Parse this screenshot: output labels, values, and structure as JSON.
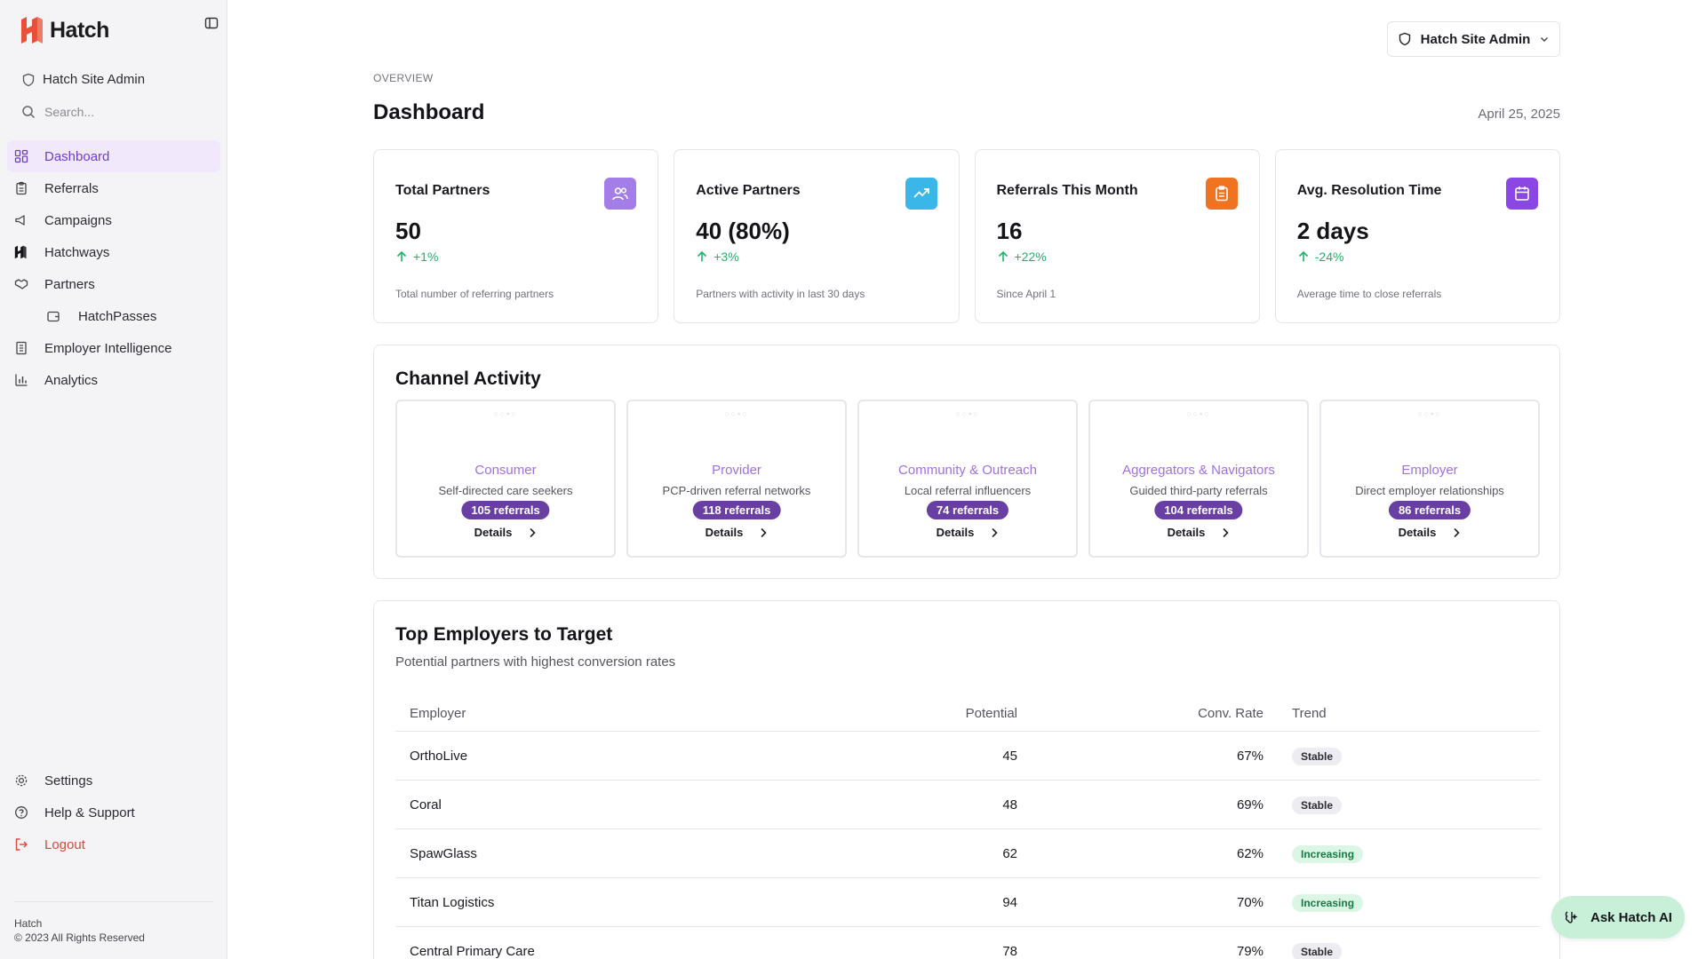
{
  "brand": {
    "name": "Hatch",
    "accent": "#e8503a"
  },
  "sidebar": {
    "org_name": "Hatch Site Admin",
    "search_placeholder": "Search...",
    "items": [
      {
        "label": "Dashboard",
        "icon": "dashboard-icon",
        "active": true
      },
      {
        "label": "Referrals",
        "icon": "clipboard-icon"
      },
      {
        "label": "Campaigns",
        "icon": "megaphone-icon"
      },
      {
        "label": "Hatchways",
        "icon": "hatch-logo-icon"
      },
      {
        "label": "Partners",
        "icon": "handshake-icon"
      },
      {
        "label": "HatchPasses",
        "icon": "wallet-icon"
      },
      {
        "label": "Employer Intelligence",
        "icon": "building-icon"
      },
      {
        "label": "Analytics",
        "icon": "bar-chart-icon"
      }
    ],
    "bottom": [
      {
        "label": "Settings",
        "icon": "gear-icon"
      },
      {
        "label": "Help & Support",
        "icon": "help-icon"
      },
      {
        "label": "Logout",
        "icon": "logout-icon"
      }
    ],
    "footer": {
      "company": "Hatch",
      "copyright": "© 2023 All Rights Reserved"
    }
  },
  "header": {
    "admin_label": "Hatch Site Admin",
    "overline": "OVERVIEW",
    "title": "Dashboard",
    "date": "April 25, 2025"
  },
  "stats": [
    {
      "label": "Total Partners",
      "value": "50",
      "delta": "+1%",
      "desc": "Total number of referring partners",
      "icon": "users-icon",
      "color": "#a37ee8"
    },
    {
      "label": "Active Partners",
      "value": "40 (80%)",
      "delta": "+3%",
      "desc": "Partners with activity in last 30 days",
      "icon": "trending-up-icon",
      "color": "#3ab7e8"
    },
    {
      "label": "Referrals This Month",
      "value": "16",
      "delta": "+22%",
      "desc": "Since April 1",
      "icon": "clipboard-icon",
      "color": "#f2731f"
    },
    {
      "label": "Avg. Resolution Time",
      "value": "2 days",
      "delta": "-24%",
      "desc": "Average time to close referrals",
      "icon": "calendar-icon",
      "color": "#8a47e6"
    }
  ],
  "channel_activity": {
    "title": "Channel Activity",
    "channels": [
      {
        "name": "Consumer",
        "sub": "Self-directed care seekers",
        "badge": "105 referrals",
        "details": "Details"
      },
      {
        "name": "Provider",
        "sub": "PCP-driven referral networks",
        "badge": "118 referrals",
        "details": "Details"
      },
      {
        "name": "Community & Outreach",
        "sub": "Local referral influencers",
        "badge": "74 referrals",
        "details": "Details"
      },
      {
        "name": "Aggregators & Navigators",
        "sub": "Guided third-party referrals",
        "badge": "104 referrals",
        "details": "Details"
      },
      {
        "name": "Employer",
        "sub": "Direct employer relationships",
        "badge": "86 referrals",
        "details": "Details"
      }
    ]
  },
  "employers": {
    "title": "Top Employers to Target",
    "subtitle": "Potential partners with highest conversion rates",
    "columns": [
      "Employer",
      "Potential",
      "Conv. Rate",
      "Trend"
    ],
    "rows": [
      {
        "name": "OrthoLive",
        "potential": "45",
        "conv": "67%",
        "trend": "Stable"
      },
      {
        "name": "Coral",
        "potential": "48",
        "conv": "69%",
        "trend": "Stable"
      },
      {
        "name": "SpawGlass",
        "potential": "62",
        "conv": "62%",
        "trend": "Increasing"
      },
      {
        "name": "Titan Logistics",
        "potential": "94",
        "conv": "70%",
        "trend": "Increasing"
      },
      {
        "name": "Central Primary Care",
        "potential": "78",
        "conv": "79%",
        "trend": "Stable"
      }
    ]
  },
  "ask_ai": {
    "label": "Ask Hatch AI"
  }
}
